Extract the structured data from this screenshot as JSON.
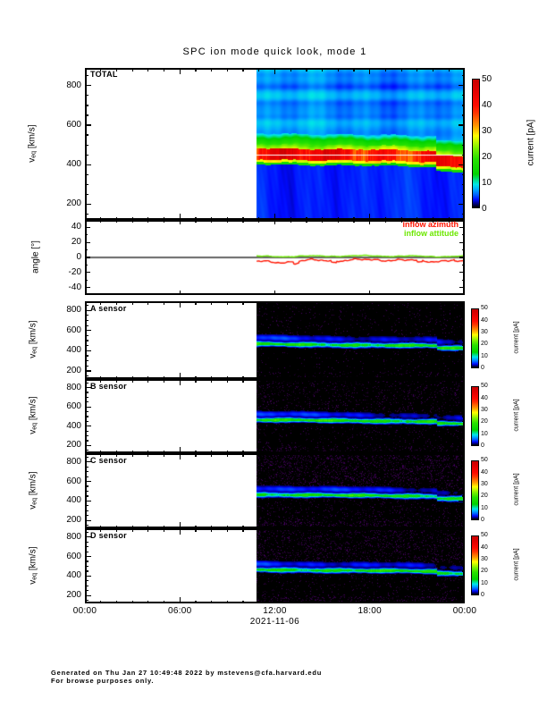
{
  "page": {
    "title": "SPC ion mode quick look, mode 1",
    "date_label": "2021-11-06",
    "x_tick_labels": [
      "00:00",
      "06:00",
      "12:00",
      "18:00",
      "00:00"
    ],
    "footer_line1": "Generated on Thu Jan 27 10:49:48 2022 by mstevens@cfa.harvard.edu",
    "footer_line2": "For browse purposes only."
  },
  "axis": {
    "veq_label": {
      "base": "v",
      "sub": "eq",
      "units": " [km/s]"
    },
    "angle_label": "angle [°]",
    "veq_ticks": [
      800,
      600,
      400,
      200
    ],
    "angle_ticks": [
      40,
      20,
      0,
      -20,
      -40
    ]
  },
  "colorbar": {
    "label": "current [pA]",
    "min": 0,
    "max": 50,
    "ticks": [
      0,
      10,
      20,
      30,
      40,
      50
    ]
  },
  "colormap_stops": [
    [
      0,
      "#000000"
    ],
    [
      1.5,
      "#000082"
    ],
    [
      3,
      "#000aff"
    ],
    [
      5,
      "#0064ff"
    ],
    [
      7,
      "#00aaff"
    ],
    [
      9,
      "#00e6e6"
    ],
    [
      11,
      "#00dc78"
    ],
    [
      13,
      "#00d200"
    ],
    [
      19,
      "#28e100"
    ],
    [
      23,
      "#78f000"
    ],
    [
      26,
      "#c8fa00"
    ],
    [
      28,
      "#ffff00"
    ],
    [
      30,
      "#ffc800"
    ],
    [
      32,
      "#ff9600"
    ],
    [
      34.5,
      "#ff6400"
    ],
    [
      37,
      "#ff3200"
    ],
    [
      40,
      "#ff0a00"
    ],
    [
      45,
      "#e60000"
    ],
    [
      50,
      "#c80000"
    ]
  ],
  "chart_data": [
    {
      "id": "total",
      "type": "heatmap",
      "title": "TOTAL",
      "ylabel": "veq [km/s]",
      "y_ticks": [
        200,
        400,
        600,
        800
      ],
      "y_range_kms": [
        120,
        890
      ],
      "x_range_hours": [
        0,
        24
      ],
      "x_major_ticks": [
        "06:00",
        "12:00",
        "18:00"
      ],
      "date": "2021-11-06",
      "data_start_hour": 10.85,
      "colorbar_label": "current [pA]",
      "colorbar_range_pA": [
        0,
        50
      ],
      "bands": [
        {
          "v_range": [
            560,
            890
          ],
          "current_pA": 7,
          "note": "diffuse blue halo with vertical striations"
        },
        {
          "v_range": [
            505,
            560
          ],
          "current_pA": 15,
          "note": "green upper shoulder"
        },
        {
          "v_range": [
            485,
            505
          ],
          "current_pA": 26,
          "note": "yellow shoulder"
        },
        {
          "v_range": [
            428,
            485
          ],
          "current_pA": 42,
          "note": "saturated red peak band"
        },
        {
          "v_range": [
            415,
            428
          ],
          "current_pA": 28,
          "note": "orange lower shoulder"
        },
        {
          "v_range": [
            403,
            415
          ],
          "current_pA": 16,
          "note": "green lower edge"
        },
        {
          "v_range": [
            120,
            403
          ],
          "current_pA": 3.5,
          "note": "blue low-speed background"
        }
      ],
      "white_gap_v_kms": 447,
      "drift_kms": -18,
      "late_step_t": 0.865,
      "late_step_kms": -22
    },
    {
      "id": "angle",
      "type": "line",
      "ylabel": "angle [°]",
      "y_ticks": [
        -40,
        -20,
        0,
        20,
        40
      ],
      "y_range_deg": [
        -50,
        50
      ],
      "zero_line": true,
      "data_start_hour": 10.85,
      "series": [
        {
          "name": "inflow azimuth",
          "color": "#ff1400",
          "mean_deg": -5,
          "min_deg": -11,
          "max_deg": -1
        },
        {
          "name": "inflow attitude",
          "color": "#6ce800",
          "mean_deg": 1.8,
          "min_deg": 0,
          "max_deg": 3.3
        }
      ]
    },
    {
      "id": "A",
      "type": "heatmap",
      "title": "A sensor",
      "ylabel": "veq [km/s]",
      "y_ticks": [
        200,
        400,
        600,
        800
      ],
      "y_range_kms": [
        120,
        890
      ],
      "data_start_hour": 10.85,
      "colorbar_label": "current [pA]",
      "colorbar_range_pA": [
        0,
        50
      ],
      "beam": {
        "center_start_kms": 466,
        "center_end_kms": 446,
        "late_step_kms": -21,
        "sigma_kms": 14,
        "peak_pA": 16,
        "halo_pA": 4
      },
      "noise_density": 0.05,
      "top_noise_density": 0.02
    },
    {
      "id": "B",
      "type": "heatmap",
      "title": "B sensor",
      "ylabel": "veq [km/s]",
      "y_ticks": [
        200,
        400,
        600,
        800
      ],
      "y_range_kms": [
        120,
        890
      ],
      "data_start_hour": 10.85,
      "colorbar_label": "current [pA]",
      "colorbar_range_pA": [
        0,
        50
      ],
      "beam": {
        "center_start_kms": 466,
        "center_end_kms": 446,
        "late_step_kms": -21,
        "sigma_kms": 14,
        "peak_pA": 17,
        "halo_pA": 4
      },
      "noise_density": 0.09,
      "top_noise_density": 0.05
    },
    {
      "id": "C",
      "type": "heatmap",
      "title": "C sensor",
      "ylabel": "veq [km/s]",
      "y_ticks": [
        200,
        400,
        600,
        800
      ],
      "y_range_kms": [
        120,
        890
      ],
      "data_start_hour": 10.85,
      "colorbar_label": "current [pA]",
      "colorbar_range_pA": [
        0,
        50
      ],
      "beam": {
        "center_start_kms": 466,
        "center_end_kms": 446,
        "late_step_kms": -21,
        "sigma_kms": 14,
        "peak_pA": 16,
        "halo_pA": 4.5
      },
      "noise_density": 0.15,
      "top_noise_density": 0.13
    },
    {
      "id": "D",
      "type": "heatmap",
      "title": "D sensor",
      "ylabel": "veq [km/s]",
      "y_ticks": [
        200,
        400,
        600,
        800
      ],
      "y_range_kms": [
        120,
        890
      ],
      "data_start_hour": 10.85,
      "colorbar_label": "current [pA]",
      "colorbar_range_pA": [
        0,
        50
      ],
      "beam": {
        "center_start_kms": 466,
        "center_end_kms": 446,
        "late_step_kms": -21,
        "sigma_kms": 14,
        "peak_pA": 16,
        "halo_pA": 4
      },
      "noise_density": 0.12,
      "top_noise_density": 0.1
    }
  ]
}
